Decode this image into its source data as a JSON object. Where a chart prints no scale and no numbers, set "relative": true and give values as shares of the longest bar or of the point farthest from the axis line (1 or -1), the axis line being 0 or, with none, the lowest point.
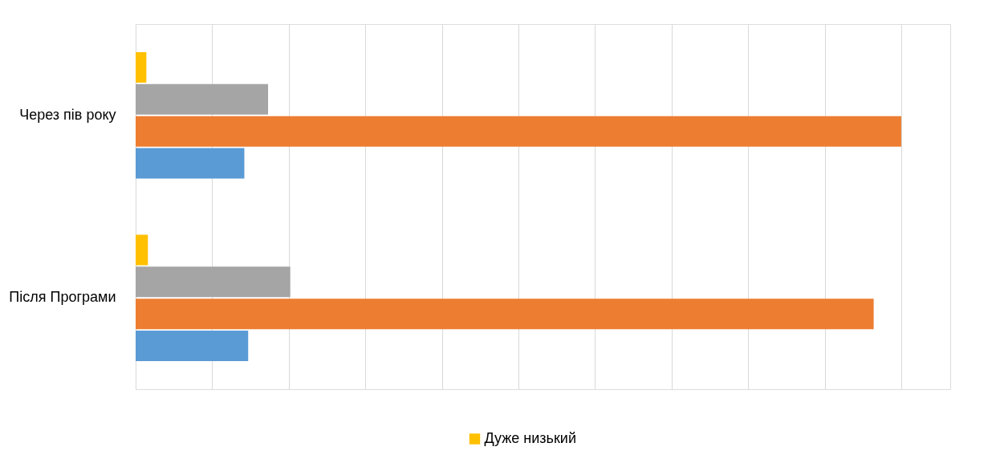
{
  "chart_data": {
    "type": "bar",
    "orientation": "horizontal",
    "relative": true,
    "grid": "x",
    "legend": "bottom",
    "categories": [
      "Через пів року",
      "Після Програми"
    ],
    "series": [
      {
        "name": "Дуже низький",
        "color": "#ffc000",
        "values": [
          0.014,
          0.016
        ]
      },
      {
        "color": "#a5a5a5",
        "values": [
          0.173,
          0.202
        ]
      },
      {
        "color": "#ed7d31",
        "values": [
          1,
          0.964
        ]
      },
      {
        "color": "#5b9bd5",
        "values": [
          0.142,
          0.147
        ]
      }
    ]
  }
}
